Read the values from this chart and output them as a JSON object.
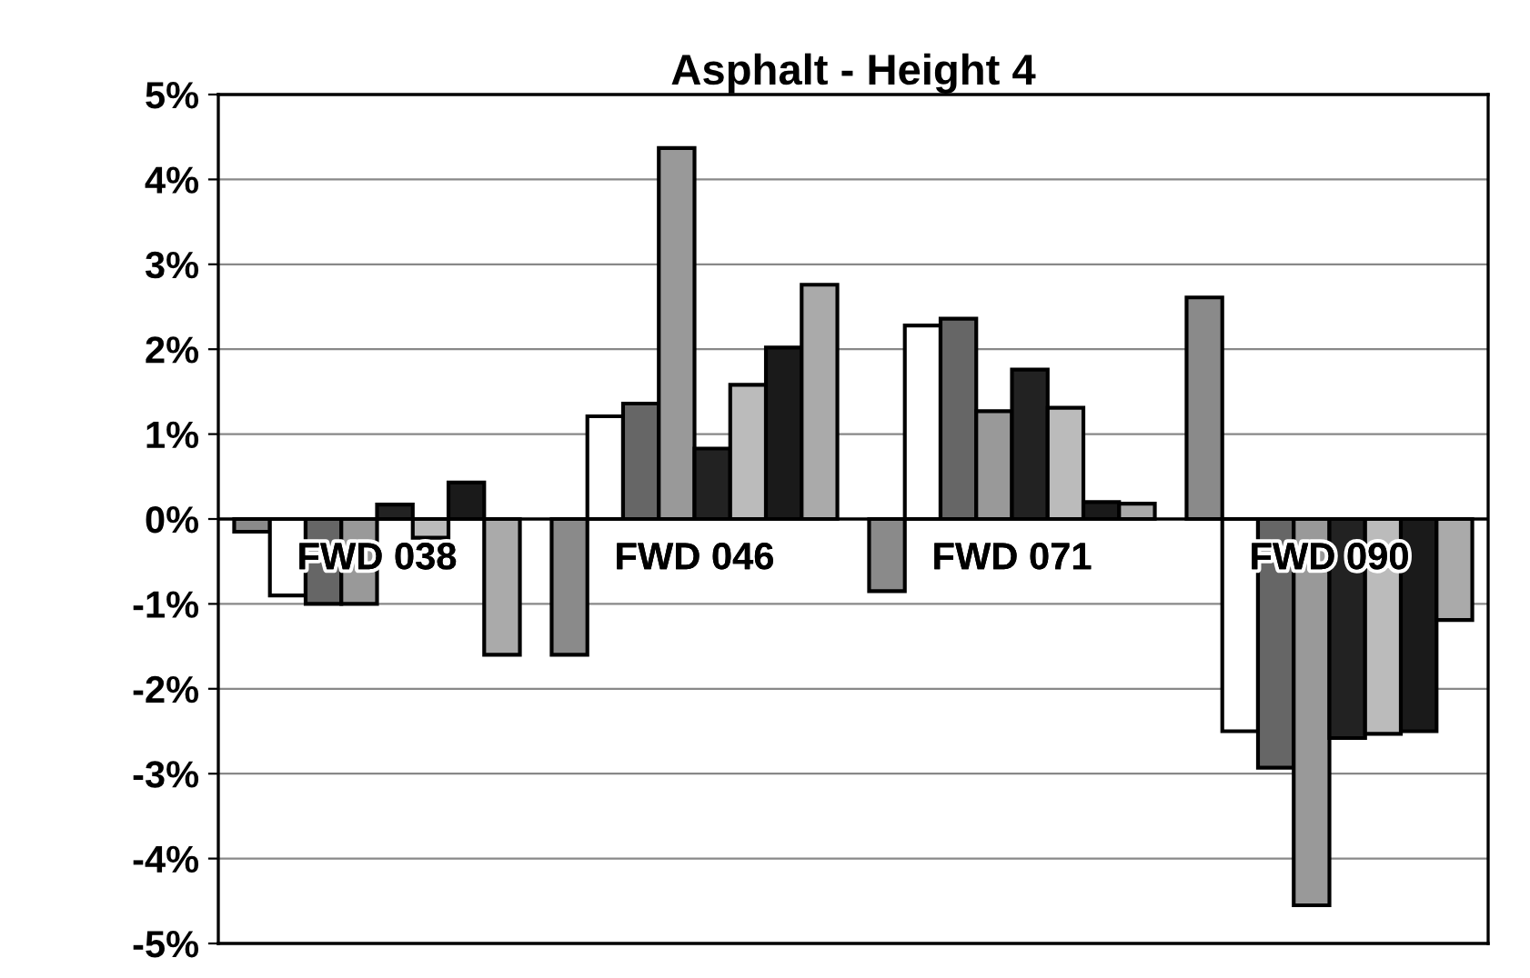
{
  "chart_data": {
    "type": "bar",
    "title": "Asphalt - Height 4",
    "categories": [
      "FWD 038",
      "FWD 046",
      "FWD 071",
      "FWD 090"
    ],
    "series": [
      {
        "color": "#8a8a8a",
        "values": [
          -0.15,
          -1.6,
          -0.85,
          2.61
        ]
      },
      {
        "color": "#ffffff",
        "values": [
          -0.9,
          1.21,
          2.28,
          -2.5
        ]
      },
      {
        "color": "#666666",
        "values": [
          -1.0,
          1.36,
          2.36,
          -2.93
        ]
      },
      {
        "color": "#999999",
        "values": [
          -1.0,
          4.37,
          1.27,
          -4.55
        ]
      },
      {
        "color": "#222222",
        "values": [
          0.17,
          0.83,
          1.76,
          -2.58
        ]
      },
      {
        "color": "#bbbbbb",
        "values": [
          -0.22,
          1.58,
          1.31,
          -2.53
        ]
      },
      {
        "color": "#1a1a1a",
        "values": [
          0.43,
          2.02,
          0.2,
          -2.5
        ]
      },
      {
        "color": "#aaaaaa",
        "values": [
          -1.6,
          2.76,
          0.18,
          -1.19
        ]
      }
    ],
    "ylim": [
      -5,
      5
    ],
    "yticks": [
      {
        "value": -5,
        "label": "-5%"
      },
      {
        "value": -4,
        "label": "-4%"
      },
      {
        "value": -3,
        "label": "-3%"
      },
      {
        "value": -2,
        "label": "-2%"
      },
      {
        "value": -1,
        "label": "-1%"
      },
      {
        "value": 0,
        "label": "0%"
      },
      {
        "value": 1,
        "label": "1%"
      },
      {
        "value": 2,
        "label": "2%"
      },
      {
        "value": 3,
        "label": "3%"
      },
      {
        "value": 4,
        "label": "4%"
      },
      {
        "value": 5,
        "label": "5%"
      }
    ],
    "grid": "y"
  }
}
